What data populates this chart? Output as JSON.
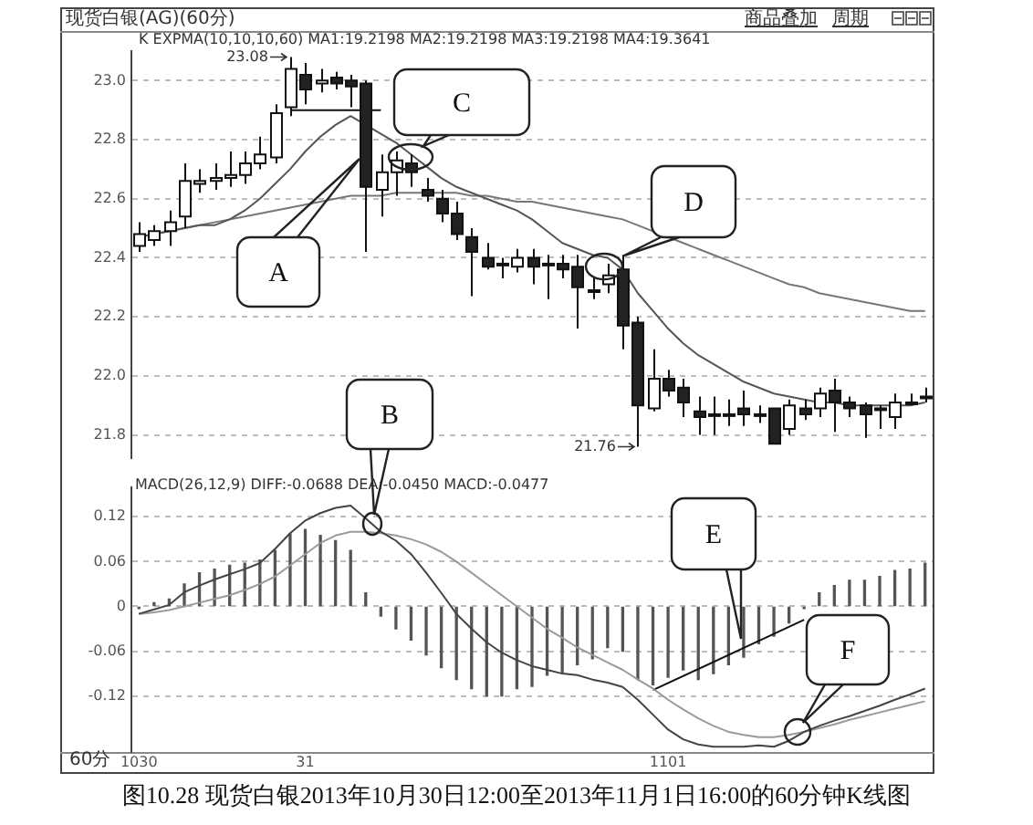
{
  "chart_data": [
    {
      "type": "candlestick",
      "title": "现货白银(AG)(60分)",
      "categories": [
        null,
        null,
        null,
        null,
        null,
        null,
        null,
        null,
        null,
        null,
        null,
        null,
        null,
        null,
        null,
        null,
        null,
        null,
        null,
        null,
        null,
        null,
        null,
        null,
        null,
        null,
        null,
        null,
        null,
        null,
        null,
        null,
        null,
        null,
        null,
        null,
        null,
        null,
        null,
        null,
        null,
        null,
        null,
        null,
        null,
        null,
        null,
        null,
        null,
        null,
        null,
        null,
        null
      ],
      "ohlc": [
        [
          22.44,
          22.52,
          22.42,
          22.48
        ],
        [
          22.46,
          22.51,
          22.44,
          22.49
        ],
        [
          22.49,
          22.56,
          22.44,
          22.52
        ],
        [
          22.54,
          22.72,
          22.5,
          22.66
        ],
        [
          22.65,
          22.7,
          22.62,
          22.66
        ],
        [
          22.66,
          22.72,
          22.63,
          22.67
        ],
        [
          22.67,
          22.76,
          22.64,
          22.68
        ],
        [
          22.68,
          22.76,
          22.65,
          22.72
        ],
        [
          22.72,
          22.81,
          22.7,
          22.75
        ],
        [
          22.74,
          22.92,
          22.72,
          22.89
        ],
        [
          22.91,
          23.08,
          22.88,
          23.04
        ],
        [
          23.02,
          23.06,
          22.92,
          22.97
        ],
        [
          22.99,
          23.04,
          22.96,
          23.0
        ],
        [
          23.01,
          23.03,
          22.97,
          22.99
        ],
        [
          23.0,
          23.02,
          22.91,
          22.98
        ],
        [
          22.99,
          23.0,
          22.42,
          22.64
        ],
        [
          22.63,
          22.75,
          22.54,
          22.69
        ],
        [
          22.69,
          22.76,
          22.61,
          22.73
        ],
        [
          22.72,
          22.75,
          22.64,
          22.69
        ],
        [
          22.63,
          22.67,
          22.59,
          22.61
        ],
        [
          22.6,
          22.63,
          22.52,
          22.55
        ],
        [
          22.55,
          22.59,
          22.46,
          22.48
        ],
        [
          22.47,
          22.5,
          22.27,
          22.42
        ],
        [
          22.4,
          22.45,
          22.36,
          22.37
        ],
        [
          22.38,
          22.4,
          22.33,
          22.38
        ],
        [
          22.37,
          22.43,
          22.35,
          22.4
        ],
        [
          22.4,
          22.43,
          22.31,
          22.37
        ],
        [
          22.38,
          22.41,
          22.26,
          22.38
        ],
        [
          22.38,
          22.41,
          22.33,
          22.36
        ],
        [
          22.37,
          22.41,
          22.16,
          22.3
        ],
        [
          22.29,
          22.33,
          22.26,
          22.29
        ],
        [
          22.31,
          22.38,
          22.28,
          22.34
        ],
        [
          22.36,
          22.41,
          22.09,
          22.17
        ],
        [
          22.18,
          22.2,
          21.76,
          21.9
        ],
        [
          21.89,
          22.09,
          21.88,
          21.99
        ],
        [
          21.99,
          22.02,
          21.93,
          21.95
        ],
        [
          21.96,
          21.99,
          21.86,
          21.91
        ],
        [
          21.88,
          21.93,
          21.8,
          21.86
        ],
        [
          21.87,
          21.93,
          21.8,
          21.87
        ],
        [
          21.87,
          21.92,
          21.83,
          21.87
        ],
        [
          21.89,
          21.95,
          21.83,
          21.87
        ],
        [
          21.87,
          21.9,
          21.84,
          21.87
        ],
        [
          21.89,
          21.89,
          21.77,
          21.77
        ],
        [
          21.82,
          21.92,
          21.8,
          21.9
        ],
        [
          21.89,
          21.92,
          21.85,
          21.87
        ],
        [
          21.89,
          21.96,
          21.86,
          21.94
        ],
        [
          21.95,
          21.99,
          21.81,
          21.91
        ],
        [
          21.91,
          21.93,
          21.86,
          21.89
        ],
        [
          21.9,
          21.91,
          21.79,
          21.87
        ],
        [
          21.89,
          21.9,
          21.82,
          21.89
        ],
        [
          21.86,
          21.94,
          21.82,
          21.91
        ],
        [
          21.91,
          21.94,
          21.9,
          21.91
        ],
        [
          21.93,
          21.96,
          21.91,
          21.93
        ]
      ],
      "series": [
        {
          "type": "line",
          "color": "#555555",
          "values": [
            22.47,
            22.48,
            22.49,
            22.5,
            22.51,
            22.51,
            22.53,
            22.56,
            22.6,
            22.65,
            22.7,
            22.76,
            22.81,
            22.85,
            22.88,
            22.85,
            22.82,
            22.79,
            22.75,
            22.71,
            22.67,
            22.64,
            22.62,
            22.6,
            22.58,
            22.56,
            22.53,
            22.49,
            22.45,
            22.43,
            22.41,
            22.4,
            22.36,
            22.28,
            22.22,
            22.16,
            22.11,
            22.07,
            22.04,
            22.01,
            21.98,
            21.96,
            21.94,
            21.93,
            21.92,
            21.91,
            21.91,
            21.9,
            21.9,
            21.9,
            21.9,
            21.9,
            21.91
          ]
        },
        {
          "type": "line",
          "color": "#777777",
          "values": [
            22.47,
            22.48,
            22.49,
            22.5,
            22.51,
            22.52,
            22.53,
            22.54,
            22.55,
            22.56,
            22.57,
            22.58,
            22.59,
            22.6,
            22.61,
            22.61,
            22.61,
            22.62,
            22.62,
            22.62,
            22.62,
            22.62,
            22.61,
            22.61,
            22.6,
            22.59,
            22.59,
            22.58,
            22.57,
            22.56,
            22.55,
            22.54,
            22.53,
            22.51,
            22.49,
            22.47,
            22.45,
            22.43,
            22.41,
            22.39,
            22.37,
            22.35,
            22.33,
            22.31,
            22.3,
            22.28,
            22.27,
            22.26,
            22.25,
            22.24,
            22.23,
            22.22,
            22.22
          ]
        },
        {
          "type": "line",
          "color": "#111111",
          "values": [
            null,
            null,
            null,
            null,
            null,
            null,
            null,
            null,
            null,
            null,
            22.9,
            22.9,
            22.9,
            22.9,
            22.9,
            22.9,
            22.9,
            null,
            null,
            null,
            null,
            null,
            null,
            null,
            null,
            null,
            null,
            null,
            null,
            null,
            null,
            null,
            null,
            null,
            null,
            null,
            null,
            null,
            null,
            null,
            null,
            null,
            null,
            null,
            null,
            null,
            null,
            null,
            null,
            null,
            null,
            null,
            null
          ]
        }
      ],
      "ylim": [
        21.72,
        23.1
      ],
      "yticks": [
        21.8,
        {
          "value": 22,
          "label": "22.0"
        },
        22.2,
        22.4,
        22.6,
        22.8,
        {
          "value": 23,
          "label": "23.0"
        }
      ],
      "grid": "y",
      "tick_labels": "y",
      "marker": "none",
      "annotations": [
        "商品叠加",
        "周期",
        "K EXPMA(10,10,10,60) MA1:19.2198 MA2:19.2198 MA3:19.2198 MA4:19.3641",
        "23.08",
        "21.76",
        "A",
        "C",
        "D"
      ]
    },
    {
      "type": "bar",
      "categories": [
        "1030",
        null,
        null,
        null,
        null,
        null,
        null,
        null,
        null,
        null,
        null,
        "31",
        null,
        null,
        null,
        null,
        null,
        null,
        null,
        null,
        null,
        null,
        null,
        null,
        null,
        null,
        null,
        null,
        null,
        null,
        null,
        null,
        null,
        null,
        null,
        "1101",
        null,
        null,
        null,
        null,
        null,
        null,
        null,
        null,
        null,
        null,
        null,
        null,
        null,
        null,
        null,
        null,
        null
      ],
      "series": [
        {
          "type": "bar",
          "color": "#555555",
          "values": [
            -0.003,
            0.005,
            0.01,
            0.03,
            0.045,
            0.05,
            0.055,
            0.058,
            0.062,
            0.075,
            0.097,
            0.103,
            0.095,
            0.088,
            0.075,
            0.018,
            -0.013,
            -0.03,
            -0.045,
            -0.065,
            -0.082,
            -0.098,
            -0.11,
            -0.12,
            -0.12,
            -0.11,
            -0.107,
            -0.092,
            -0.088,
            -0.078,
            -0.07,
            -0.055,
            -0.06,
            -0.098,
            -0.105,
            -0.095,
            -0.085,
            -0.098,
            -0.09,
            -0.078,
            -0.068,
            -0.05,
            -0.04,
            -0.022,
            -0.003,
            0.018,
            0.028,
            0.035,
            0.035,
            0.04,
            0.048,
            0.05,
            0.058
          ]
        },
        {
          "type": "line",
          "color": "#444444",
          "values": [
            -0.01,
            -0.004,
            0.002,
            0.019,
            0.028,
            0.036,
            0.043,
            0.05,
            0.058,
            0.077,
            0.098,
            0.115,
            0.125,
            0.132,
            0.135,
            0.118,
            0.1,
            0.088,
            0.07,
            0.045,
            0.018,
            -0.01,
            -0.03,
            -0.048,
            -0.062,
            -0.072,
            -0.08,
            -0.085,
            -0.09,
            -0.092,
            -0.098,
            -0.102,
            -0.108,
            -0.125,
            -0.145,
            -0.165,
            -0.178,
            -0.185,
            -0.188,
            -0.188,
            -0.188,
            -0.186,
            -0.188,
            -0.18,
            -0.168,
            -0.16,
            -0.153,
            -0.147,
            -0.14,
            -0.133,
            -0.125,
            -0.118,
            -0.11
          ]
        },
        {
          "type": "line",
          "color": "#9a9a9a",
          "values": [
            -0.01,
            -0.008,
            -0.005,
            0,
            0.005,
            0.01,
            0.015,
            0.022,
            0.03,
            0.04,
            0.055,
            0.07,
            0.085,
            0.095,
            0.1,
            0.1,
            0.098,
            0.095,
            0.09,
            0.083,
            0.073,
            0.06,
            0.045,
            0.03,
            0.015,
            0,
            -0.015,
            -0.03,
            -0.042,
            -0.055,
            -0.065,
            -0.075,
            -0.085,
            -0.098,
            -0.11,
            -0.125,
            -0.138,
            -0.15,
            -0.16,
            -0.168,
            -0.172,
            -0.175,
            -0.175,
            -0.172,
            -0.168,
            -0.163,
            -0.158,
            -0.152,
            -0.147,
            -0.142,
            -0.137,
            -0.132,
            -0.127
          ]
        },
        {
          "type": "line",
          "color": "#111111",
          "values": [
            null,
            null,
            null,
            null,
            null,
            null,
            null,
            null,
            null,
            null,
            null,
            null,
            null,
            null,
            null,
            null,
            null,
            null,
            null,
            null,
            null,
            null,
            null,
            null,
            null,
            null,
            null,
            null,
            null,
            null,
            null,
            null,
            null,
            null,
            -0.112,
            null,
            null,
            null,
            null,
            null,
            null,
            null,
            null,
            null,
            -0.018,
            null,
            null,
            null,
            null,
            null,
            null,
            null,
            null
          ]
        }
      ],
      "ylim": [
        -0.195,
        0.16
      ],
      "yticks": [
        -0.12,
        -0.06,
        0,
        0.06,
        0.12
      ],
      "grid": "y",
      "marker": "none",
      "annotations": [
        "MACD(26,12,9) DIFF:-0.0688 DEA:-0.0450 MACD:-0.0477",
        "B",
        "E",
        "F",
        "60分",
        "图10.28  现货白银2013年10月30日12:00至2013年11月1日16:00的60分钟K线图"
      ]
    }
  ]
}
